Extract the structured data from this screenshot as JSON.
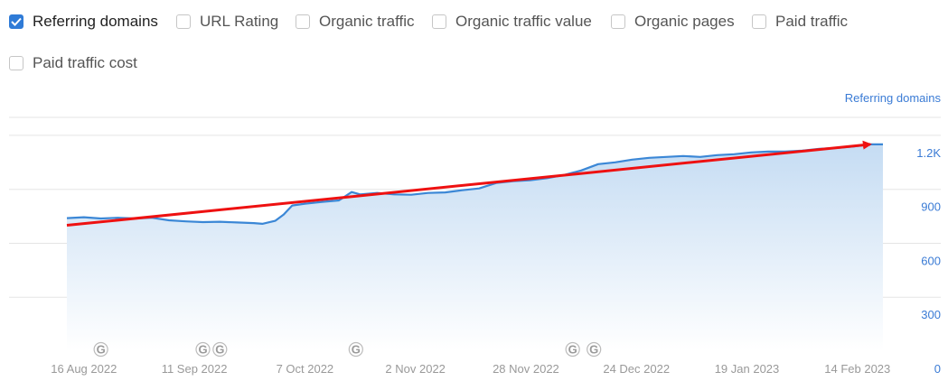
{
  "filters": [
    {
      "label": "Referring domains",
      "checked": true
    },
    {
      "label": "URL Rating",
      "checked": false
    },
    {
      "label": "Organic traffic",
      "checked": false
    },
    {
      "label": "Organic traffic value",
      "checked": false
    },
    {
      "label": "Organic pages",
      "checked": false
    },
    {
      "label": "Paid traffic",
      "checked": false
    },
    {
      "label": "Paid traffic cost",
      "checked": false
    }
  ],
  "colors": {
    "series_line": "#3b87d6",
    "area_top": "#c5dcf3",
    "area_bottom": "#ffffff",
    "trend_arrow": "#ee1111",
    "axis_label": "#3a7bd5",
    "x_label": "#999999",
    "grid": "#e5e5e5",
    "checkbox_accent": "#2f7bd7"
  },
  "chart_data": {
    "type": "area",
    "series_axis_label": "Referring domains",
    "y_axis_position": "right",
    "ylim": [
      0,
      1300
    ],
    "yticks": [
      0,
      300,
      600,
      900,
      1200
    ],
    "ytick_labels": [
      "0",
      "300",
      "600",
      "900",
      "1.2K"
    ],
    "grid": true,
    "x_tick_labels": [
      "16 Aug 2022",
      "11 Sep 2022",
      "7 Oct 2022",
      "2 Nov 2022",
      "28 Nov 2022",
      "24 Dec 2022",
      "19 Jan 2023",
      "14 Feb 2023"
    ],
    "x_start": "2022-08-12",
    "x_end": "2023-02-20",
    "series": [
      {
        "name": "Referring domains",
        "points": [
          [
            "2022-08-12",
            740
          ],
          [
            "2022-08-16",
            745
          ],
          [
            "2022-08-20",
            738
          ],
          [
            "2022-08-24",
            742
          ],
          [
            "2022-08-28",
            738
          ],
          [
            "2022-09-01",
            742
          ],
          [
            "2022-09-05",
            728
          ],
          [
            "2022-09-09",
            722
          ],
          [
            "2022-09-13",
            718
          ],
          [
            "2022-09-17",
            720
          ],
          [
            "2022-09-21",
            716
          ],
          [
            "2022-09-25",
            712
          ],
          [
            "2022-09-27",
            708
          ],
          [
            "2022-09-30",
            725
          ],
          [
            "2022-10-02",
            760
          ],
          [
            "2022-10-04",
            810
          ],
          [
            "2022-10-07",
            820
          ],
          [
            "2022-10-11",
            830
          ],
          [
            "2022-10-15",
            838
          ],
          [
            "2022-10-18",
            885
          ],
          [
            "2022-10-20",
            872
          ],
          [
            "2022-10-24",
            880
          ],
          [
            "2022-10-28",
            872
          ],
          [
            "2022-11-01",
            870
          ],
          [
            "2022-11-05",
            880
          ],
          [
            "2022-11-09",
            883
          ],
          [
            "2022-11-13",
            895
          ],
          [
            "2022-11-17",
            905
          ],
          [
            "2022-11-21",
            935
          ],
          [
            "2022-11-25",
            945
          ],
          [
            "2022-11-29",
            950
          ],
          [
            "2022-12-03",
            962
          ],
          [
            "2022-12-07",
            980
          ],
          [
            "2022-12-11",
            1005
          ],
          [
            "2022-12-15",
            1040
          ],
          [
            "2022-12-19",
            1050
          ],
          [
            "2022-12-23",
            1065
          ],
          [
            "2022-12-27",
            1075
          ],
          [
            "2022-12-31",
            1080
          ],
          [
            "2023-01-04",
            1085
          ],
          [
            "2023-01-08",
            1080
          ],
          [
            "2023-01-12",
            1090
          ],
          [
            "2023-01-16",
            1095
          ],
          [
            "2023-01-20",
            1105
          ],
          [
            "2023-01-24",
            1110
          ],
          [
            "2023-01-28",
            1110
          ],
          [
            "2023-02-01",
            1115
          ],
          [
            "2023-02-05",
            1125
          ],
          [
            "2023-02-09",
            1130
          ],
          [
            "2023-02-13",
            1138
          ],
          [
            "2023-02-17",
            1150
          ],
          [
            "2023-02-20",
            1150
          ]
        ]
      }
    ],
    "trend_arrow": {
      "from": [
        "2022-08-12",
        700
      ],
      "to": [
        "2023-02-17",
        1150
      ]
    },
    "google_update_markers": [
      "2022-08-20",
      "2022-09-13",
      "2022-09-17",
      "2022-10-19",
      "2022-12-09",
      "2022-12-14"
    ]
  }
}
